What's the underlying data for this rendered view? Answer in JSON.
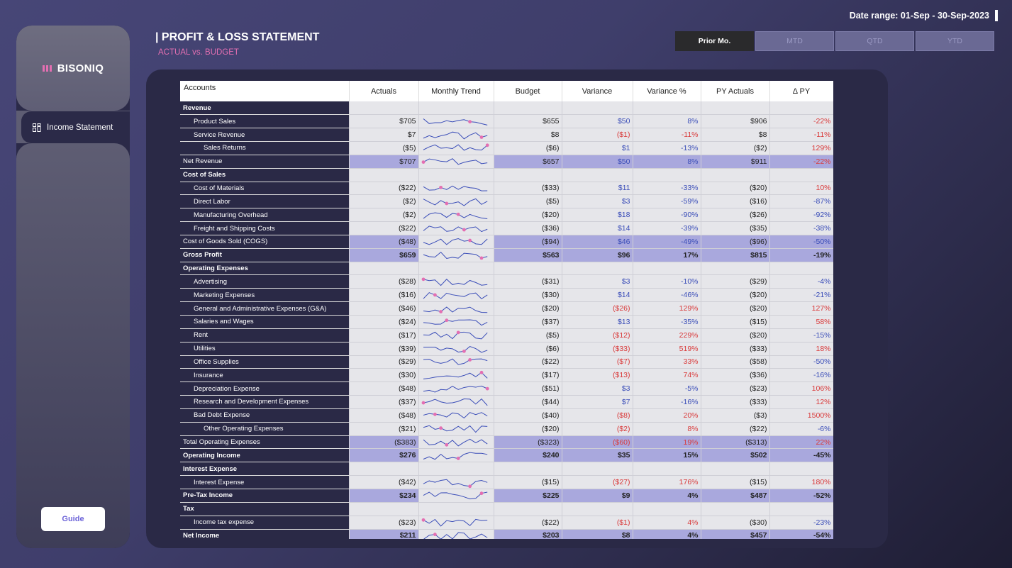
{
  "date_range": "Date range: 01-Sep - 30-Sep-2023",
  "brand": {
    "name": "BISONIQ",
    "accent": "#e46fb2"
  },
  "nav": {
    "item_label": "Income Statement",
    "icon": "grid-icon"
  },
  "guide_label": "Guide",
  "title": "| PROFIT & LOSS STATEMENT",
  "subtitle": "ACTUAL vs. BUDGET",
  "period_tabs": [
    "Prior Mo.",
    "MTD",
    "QTD",
    "YTD"
  ],
  "active_tab": "Prior Mo.",
  "columns": [
    "Accounts",
    "Actuals",
    "Monthly Trend",
    "Budget",
    "Variance",
    "Variance %",
    "PY Actuals",
    "Δ PY"
  ],
  "colors": {
    "positive": "#3a4db8",
    "negative": "#d93a3a",
    "total_row": "#a9a8dd",
    "sparkline": "#3a4db8",
    "spark_marker": "#e46fb2"
  },
  "rows": [
    {
      "label": "Revenue",
      "kind": "section"
    },
    {
      "label": "Product Sales",
      "kind": "l1",
      "actuals": "$705",
      "budget": "$655",
      "variance": "$50",
      "var_pct": "8%",
      "py": "$906",
      "dpy": "-22%",
      "vs": "pos",
      "vps": "pos",
      "ds": "neg"
    },
    {
      "label": "Service Revenue",
      "kind": "l1",
      "actuals": "$7",
      "budget": "$8",
      "variance": "($1)",
      "var_pct": "-11%",
      "py": "$8",
      "dpy": "-11%",
      "vs": "neg",
      "vps": "neg",
      "ds": "neg"
    },
    {
      "label": "Sales Returns",
      "kind": "l2",
      "actuals": "($5)",
      "budget": "($6)",
      "variance": "$1",
      "var_pct": "-13%",
      "py": "($2)",
      "dpy": "129%",
      "vs": "pos",
      "vps": "pos",
      "ds": "neg"
    },
    {
      "label": "Net Revenue",
      "kind": "total",
      "actuals": "$707",
      "budget": "$657",
      "variance": "$50",
      "var_pct": "8%",
      "py": "$911",
      "dpy": "-22%",
      "vs": "pos",
      "vps": "pos",
      "ds": "neg"
    },
    {
      "label": "Cost of Sales",
      "kind": "section"
    },
    {
      "label": "Cost of Materials",
      "kind": "l1",
      "actuals": "($22)",
      "budget": "($33)",
      "variance": "$11",
      "var_pct": "-33%",
      "py": "($20)",
      "dpy": "10%",
      "vs": "pos",
      "vps": "pos",
      "ds": "neg"
    },
    {
      "label": "Direct Labor",
      "kind": "l1",
      "actuals": "($2)",
      "budget": "($5)",
      "variance": "$3",
      "var_pct": "-59%",
      "py": "($16)",
      "dpy": "-87%",
      "vs": "pos",
      "vps": "pos",
      "ds": "pos"
    },
    {
      "label": "Manufacturing Overhead",
      "kind": "l1",
      "actuals": "($2)",
      "budget": "($20)",
      "variance": "$18",
      "var_pct": "-90%",
      "py": "($26)",
      "dpy": "-92%",
      "vs": "pos",
      "vps": "pos",
      "ds": "pos"
    },
    {
      "label": "Freight and Shipping Costs",
      "kind": "l1",
      "actuals": "($22)",
      "budget": "($36)",
      "variance": "$14",
      "var_pct": "-39%",
      "py": "($35)",
      "dpy": "-38%",
      "vs": "pos",
      "vps": "pos",
      "ds": "pos"
    },
    {
      "label": "Cost of Goods Sold (COGS)",
      "kind": "total",
      "actuals": "($48)",
      "budget": "($94)",
      "variance": "$46",
      "var_pct": "-49%",
      "py": "($96)",
      "dpy": "-50%",
      "vs": "pos",
      "vps": "pos",
      "ds": "pos"
    },
    {
      "label": "Gross Profit",
      "kind": "grand",
      "actuals": "$659",
      "budget": "$563",
      "variance": "$96",
      "var_pct": "17%",
      "py": "$815",
      "dpy": "-19%"
    },
    {
      "label": "Operating Expenses",
      "kind": "section"
    },
    {
      "label": "Advertising",
      "kind": "l1",
      "actuals": "($28)",
      "budget": "($31)",
      "variance": "$3",
      "var_pct": "-10%",
      "py": "($29)",
      "dpy": "-4%",
      "vs": "pos",
      "vps": "pos",
      "ds": "pos"
    },
    {
      "label": "Marketing Expenses",
      "kind": "l1",
      "actuals": "($16)",
      "budget": "($30)",
      "variance": "$14",
      "var_pct": "-46%",
      "py": "($20)",
      "dpy": "-21%",
      "vs": "pos",
      "vps": "pos",
      "ds": "pos"
    },
    {
      "label": "General and Administrative Expenses (G&A)",
      "kind": "l1",
      "actuals": "($46)",
      "budget": "($20)",
      "variance": "($26)",
      "var_pct": "129%",
      "py": "($20)",
      "dpy": "127%",
      "vs": "neg",
      "vps": "neg",
      "ds": "neg"
    },
    {
      "label": "Salaries and Wages",
      "kind": "l1",
      "actuals": "($24)",
      "budget": "($37)",
      "variance": "$13",
      "var_pct": "-35%",
      "py": "($15)",
      "dpy": "58%",
      "vs": "pos",
      "vps": "pos",
      "ds": "neg"
    },
    {
      "label": "Rent",
      "kind": "l1",
      "actuals": "($17)",
      "budget": "($5)",
      "variance": "($12)",
      "var_pct": "229%",
      "py": "($20)",
      "dpy": "-15%",
      "vs": "neg",
      "vps": "neg",
      "ds": "pos"
    },
    {
      "label": "Utilities",
      "kind": "l1",
      "actuals": "($39)",
      "budget": "($6)",
      "variance": "($33)",
      "var_pct": "519%",
      "py": "($33)",
      "dpy": "18%",
      "vs": "neg",
      "vps": "neg",
      "ds": "neg"
    },
    {
      "label": "Office Supplies",
      "kind": "l1",
      "actuals": "($29)",
      "budget": "($22)",
      "variance": "($7)",
      "var_pct": "33%",
      "py": "($58)",
      "dpy": "-50%",
      "vs": "neg",
      "vps": "neg",
      "ds": "pos"
    },
    {
      "label": "Insurance",
      "kind": "l1",
      "actuals": "($30)",
      "budget": "($17)",
      "variance": "($13)",
      "var_pct": "74%",
      "py": "($36)",
      "dpy": "-16%",
      "vs": "neg",
      "vps": "neg",
      "ds": "pos"
    },
    {
      "label": "Depreciation Expense",
      "kind": "l1",
      "actuals": "($48)",
      "budget": "($51)",
      "variance": "$3",
      "var_pct": "-5%",
      "py": "($23)",
      "dpy": "106%",
      "vs": "pos",
      "vps": "pos",
      "ds": "neg"
    },
    {
      "label": "Research and Development Expenses",
      "kind": "l1",
      "actuals": "($37)",
      "budget": "($44)",
      "variance": "$7",
      "var_pct": "-16%",
      "py": "($33)",
      "dpy": "12%",
      "vs": "pos",
      "vps": "pos",
      "ds": "neg"
    },
    {
      "label": "Bad Debt Expense",
      "kind": "l1",
      "actuals": "($48)",
      "budget": "($40)",
      "variance": "($8)",
      "var_pct": "20%",
      "py": "($3)",
      "dpy": "1500%",
      "vs": "neg",
      "vps": "neg",
      "ds": "neg"
    },
    {
      "label": "Other Operating Expenses",
      "kind": "l2",
      "actuals": "($21)",
      "budget": "($20)",
      "variance": "($2)",
      "var_pct": "8%",
      "py": "($22)",
      "dpy": "-6%",
      "vs": "neg",
      "vps": "neg",
      "ds": "pos"
    },
    {
      "label": "Total Operating Expenses",
      "kind": "total",
      "actuals": "($383)",
      "budget": "($323)",
      "variance": "($60)",
      "var_pct": "19%",
      "py": "($313)",
      "dpy": "22%",
      "vs": "neg",
      "vps": "neg",
      "ds": "neg"
    },
    {
      "label": "Operating Income",
      "kind": "grand",
      "actuals": "$276",
      "budget": "$240",
      "variance": "$35",
      "var_pct": "15%",
      "py": "$502",
      "dpy": "-45%"
    },
    {
      "label": "Interest Expense",
      "kind": "section"
    },
    {
      "label": "Interest Expense",
      "kind": "l1",
      "actuals": "($42)",
      "budget": "($15)",
      "variance": "($27)",
      "var_pct": "176%",
      "py": "($15)",
      "dpy": "180%",
      "vs": "neg",
      "vps": "neg",
      "ds": "neg"
    },
    {
      "label": "Pre-Tax Income",
      "kind": "grand",
      "actuals": "$234",
      "budget": "$225",
      "variance": "$9",
      "var_pct": "4%",
      "py": "$487",
      "dpy": "-52%"
    },
    {
      "label": "Tax",
      "kind": "section"
    },
    {
      "label": "Income tax expense",
      "kind": "l1",
      "actuals": "($23)",
      "budget": "($22)",
      "variance": "($1)",
      "var_pct": "4%",
      "py": "($30)",
      "dpy": "-23%",
      "vs": "neg",
      "vps": "neg",
      "ds": "pos"
    },
    {
      "label": "Net Income",
      "kind": "grand",
      "actuals": "$211",
      "budget": "$203",
      "variance": "$8",
      "var_pct": "4%",
      "py": "$457",
      "dpy": "-54%"
    }
  ]
}
